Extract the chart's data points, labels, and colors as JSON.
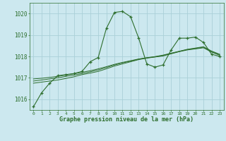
{
  "title": "Graphe pression niveau de la mer (hPa)",
  "background_color": "#cce8ef",
  "grid_color": "#aad0d8",
  "line_color": "#2d6e2d",
  "xlim": [
    -0.5,
    23.5
  ],
  "ylim": [
    1015.5,
    1020.5
  ],
  "yticks": [
    1016,
    1017,
    1018,
    1019,
    1020
  ],
  "xticks": [
    0,
    1,
    2,
    3,
    4,
    5,
    6,
    7,
    8,
    9,
    10,
    11,
    12,
    13,
    14,
    15,
    16,
    17,
    18,
    19,
    20,
    21,
    22,
    23
  ],
  "series_main": {
    "x": [
      0,
      1,
      2,
      3,
      4,
      5,
      6,
      7,
      8,
      9,
      10,
      11,
      12,
      13,
      14,
      15,
      16,
      17,
      18,
      19,
      20,
      21,
      22,
      23
    ],
    "y": [
      1015.65,
      1016.3,
      1016.75,
      1017.1,
      1017.15,
      1017.2,
      1017.3,
      1017.75,
      1017.95,
      1019.3,
      1020.05,
      1020.1,
      1019.85,
      1018.85,
      1017.65,
      1017.5,
      1017.6,
      1018.3,
      1018.85,
      1018.85,
      1018.9,
      1018.65,
      1018.1,
      1018.0
    ]
  },
  "series_smooth1": {
    "x": [
      0,
      1,
      2,
      3,
      4,
      5,
      6,
      7,
      8,
      9,
      10,
      11,
      12,
      13,
      14,
      15,
      16,
      17,
      18,
      19,
      20,
      21,
      22,
      23
    ],
    "y": [
      1016.75,
      1016.8,
      1016.85,
      1016.9,
      1016.97,
      1017.05,
      1017.15,
      1017.22,
      1017.3,
      1017.42,
      1017.55,
      1017.65,
      1017.75,
      1017.85,
      1017.92,
      1017.97,
      1018.02,
      1018.12,
      1018.22,
      1018.3,
      1018.35,
      1018.4,
      1018.2,
      1018.05
    ]
  },
  "series_smooth2": {
    "x": [
      0,
      1,
      2,
      3,
      4,
      5,
      6,
      7,
      8,
      9,
      10,
      11,
      12,
      13,
      14,
      15,
      16,
      17,
      18,
      19,
      20,
      21,
      22,
      23
    ],
    "y": [
      1016.85,
      1016.9,
      1016.95,
      1017.0,
      1017.07,
      1017.13,
      1017.2,
      1017.28,
      1017.37,
      1017.48,
      1017.6,
      1017.7,
      1017.78,
      1017.87,
      1017.93,
      1017.98,
      1018.04,
      1018.14,
      1018.23,
      1018.32,
      1018.37,
      1018.43,
      1018.22,
      1018.08
    ]
  },
  "series_smooth3": {
    "x": [
      0,
      1,
      2,
      3,
      4,
      5,
      6,
      7,
      8,
      9,
      10,
      11,
      12,
      13,
      14,
      15,
      16,
      17,
      18,
      19,
      20,
      21,
      22,
      23
    ],
    "y": [
      1016.95,
      1016.98,
      1017.02,
      1017.07,
      1017.13,
      1017.19,
      1017.26,
      1017.33,
      1017.42,
      1017.52,
      1017.63,
      1017.72,
      1017.8,
      1017.88,
      1017.94,
      1017.99,
      1018.06,
      1018.15,
      1018.24,
      1018.33,
      1018.39,
      1018.45,
      1018.25,
      1018.1
    ]
  }
}
